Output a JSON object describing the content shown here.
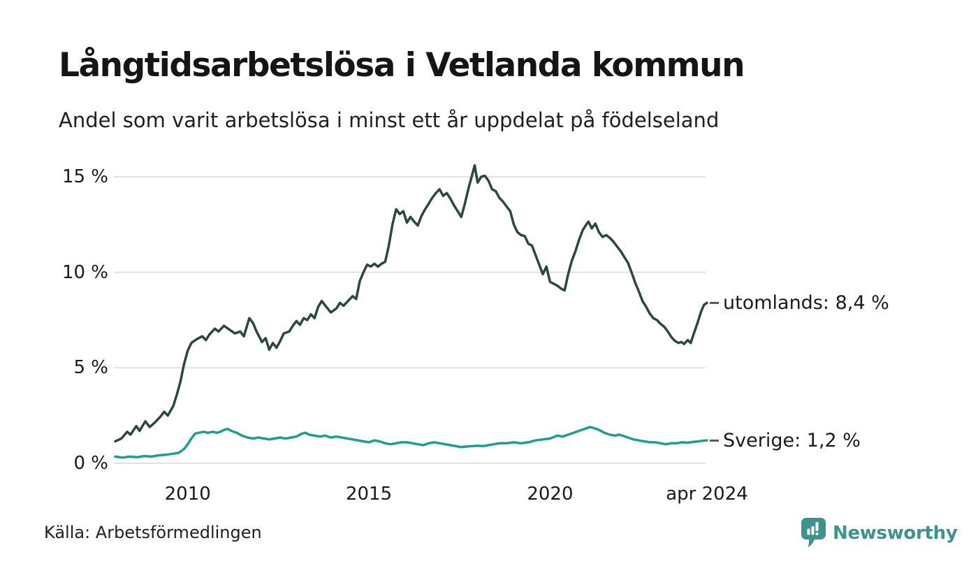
{
  "header": {
    "title": "Långtidsarbetslösa i Vetlanda kommun",
    "subtitle": "Andel som varit arbetslösa i minst ett år uppdelat på födelseland"
  },
  "footer": {
    "source": "Källa: Arbetsförmedlingen",
    "brand": "Newsworthy",
    "brand_icon": "newsworthy-pin-bar-chart-icon"
  },
  "colors": {
    "series_utomlands": "#2b4741",
    "series_sverige": "#1f9e8e",
    "grid": "#e1e1e1",
    "text": "#1a1a1a",
    "brand": "#3c948c",
    "label_dash": "#5a5a5a"
  },
  "chart_data": {
    "type": "line",
    "title": "Långtidsarbetslösa i Vetlanda kommun",
    "subtitle": "Andel som varit arbetslösa i minst ett år uppdelat på födelseland",
    "unit": "%",
    "grid": "horizontal",
    "legend_position": "right-of-line-ends",
    "xlim": [
      2008.0,
      2024.33
    ],
    "ylim": [
      0,
      15.8
    ],
    "x_ticks": [
      {
        "year": 2010,
        "label": "2010"
      },
      {
        "year": 2015,
        "label": "2015"
      },
      {
        "year": 2020,
        "label": "2020"
      },
      {
        "year": 2024.33,
        "label": "apr 2024"
      }
    ],
    "y_ticks": [
      {
        "value": 15,
        "label": "15 %"
      },
      {
        "value": 10,
        "label": "10 %"
      },
      {
        "value": 5,
        "label": "5 %"
      },
      {
        "value": 0,
        "label": "0 %"
      }
    ],
    "series": [
      {
        "name": "utomlands",
        "end_label": "utomlands: 8,4 %",
        "last_value_display": "8,4 %",
        "color": "#2b4741",
        "points": [
          [
            2008.0,
            1.15
          ],
          [
            2008.17,
            1.3
          ],
          [
            2008.33,
            1.65
          ],
          [
            2008.42,
            1.5
          ],
          [
            2008.58,
            1.95
          ],
          [
            2008.67,
            1.7
          ],
          [
            2008.83,
            2.2
          ],
          [
            2008.95,
            1.9
          ],
          [
            2009.1,
            2.15
          ],
          [
            2009.25,
            2.45
          ],
          [
            2009.35,
            2.7
          ],
          [
            2009.45,
            2.5
          ],
          [
            2009.6,
            3.0
          ],
          [
            2009.7,
            3.6
          ],
          [
            2009.8,
            4.3
          ],
          [
            2009.9,
            5.2
          ],
          [
            2010.0,
            5.9
          ],
          [
            2010.1,
            6.3
          ],
          [
            2010.25,
            6.5
          ],
          [
            2010.4,
            6.65
          ],
          [
            2010.5,
            6.45
          ],
          [
            2010.6,
            6.75
          ],
          [
            2010.75,
            7.05
          ],
          [
            2010.85,
            6.9
          ],
          [
            2011.0,
            7.2
          ],
          [
            2011.15,
            7.0
          ],
          [
            2011.3,
            6.8
          ],
          [
            2011.45,
            6.9
          ],
          [
            2011.55,
            6.65
          ],
          [
            2011.7,
            7.6
          ],
          [
            2011.8,
            7.35
          ],
          [
            2011.9,
            6.9
          ],
          [
            2012.05,
            6.35
          ],
          [
            2012.15,
            6.55
          ],
          [
            2012.25,
            5.95
          ],
          [
            2012.35,
            6.3
          ],
          [
            2012.45,
            6.05
          ],
          [
            2012.55,
            6.4
          ],
          [
            2012.65,
            6.8
          ],
          [
            2012.8,
            6.9
          ],
          [
            2012.9,
            7.2
          ],
          [
            2013.0,
            7.45
          ],
          [
            2013.1,
            7.25
          ],
          [
            2013.2,
            7.6
          ],
          [
            2013.3,
            7.5
          ],
          [
            2013.4,
            7.8
          ],
          [
            2013.5,
            7.6
          ],
          [
            2013.6,
            8.2
          ],
          [
            2013.7,
            8.5
          ],
          [
            2013.8,
            8.25
          ],
          [
            2013.95,
            7.9
          ],
          [
            2014.1,
            8.1
          ],
          [
            2014.2,
            8.4
          ],
          [
            2014.3,
            8.25
          ],
          [
            2014.45,
            8.55
          ],
          [
            2014.55,
            8.75
          ],
          [
            2014.65,
            8.6
          ],
          [
            2014.75,
            9.55
          ],
          [
            2014.85,
            10.0
          ],
          [
            2014.95,
            10.4
          ],
          [
            2015.05,
            10.3
          ],
          [
            2015.15,
            10.45
          ],
          [
            2015.25,
            10.3
          ],
          [
            2015.35,
            10.45
          ],
          [
            2015.45,
            10.55
          ],
          [
            2015.55,
            11.4
          ],
          [
            2015.65,
            12.5
          ],
          [
            2015.75,
            13.3
          ],
          [
            2015.85,
            13.05
          ],
          [
            2015.95,
            13.2
          ],
          [
            2016.05,
            12.6
          ],
          [
            2016.15,
            12.9
          ],
          [
            2016.25,
            12.65
          ],
          [
            2016.35,
            12.45
          ],
          [
            2016.45,
            12.95
          ],
          [
            2016.55,
            13.3
          ],
          [
            2016.65,
            13.6
          ],
          [
            2016.75,
            13.9
          ],
          [
            2016.85,
            14.15
          ],
          [
            2016.95,
            14.35
          ],
          [
            2017.05,
            14.0
          ],
          [
            2017.15,
            14.15
          ],
          [
            2017.25,
            13.85
          ],
          [
            2017.35,
            13.5
          ],
          [
            2017.45,
            13.2
          ],
          [
            2017.55,
            12.9
          ],
          [
            2017.65,
            13.6
          ],
          [
            2017.75,
            14.4
          ],
          [
            2017.85,
            15.1
          ],
          [
            2017.92,
            15.6
          ],
          [
            2018.0,
            14.7
          ],
          [
            2018.1,
            15.0
          ],
          [
            2018.2,
            15.05
          ],
          [
            2018.3,
            14.8
          ],
          [
            2018.4,
            14.35
          ],
          [
            2018.5,
            14.25
          ],
          [
            2018.6,
            13.9
          ],
          [
            2018.7,
            13.7
          ],
          [
            2018.8,
            13.45
          ],
          [
            2018.9,
            13.2
          ],
          [
            2019.0,
            12.5
          ],
          [
            2019.1,
            12.1
          ],
          [
            2019.2,
            11.95
          ],
          [
            2019.3,
            11.9
          ],
          [
            2019.4,
            11.5
          ],
          [
            2019.5,
            11.4
          ],
          [
            2019.6,
            10.9
          ],
          [
            2019.7,
            10.4
          ],
          [
            2019.8,
            9.9
          ],
          [
            2019.9,
            10.3
          ],
          [
            2020.0,
            9.5
          ],
          [
            2020.1,
            9.4
          ],
          [
            2020.2,
            9.3
          ],
          [
            2020.3,
            9.15
          ],
          [
            2020.4,
            9.05
          ],
          [
            2020.5,
            9.9
          ],
          [
            2020.6,
            10.6
          ],
          [
            2020.7,
            11.1
          ],
          [
            2020.8,
            11.7
          ],
          [
            2020.9,
            12.2
          ],
          [
            2021.0,
            12.5
          ],
          [
            2021.06,
            12.65
          ],
          [
            2021.15,
            12.3
          ],
          [
            2021.25,
            12.55
          ],
          [
            2021.35,
            12.1
          ],
          [
            2021.45,
            11.85
          ],
          [
            2021.55,
            11.95
          ],
          [
            2021.65,
            11.8
          ],
          [
            2021.75,
            11.6
          ],
          [
            2021.85,
            11.35
          ],
          [
            2021.95,
            11.1
          ],
          [
            2022.05,
            10.8
          ],
          [
            2022.15,
            10.5
          ],
          [
            2022.25,
            10.0
          ],
          [
            2022.35,
            9.45
          ],
          [
            2022.45,
            9.0
          ],
          [
            2022.55,
            8.5
          ],
          [
            2022.65,
            8.2
          ],
          [
            2022.75,
            7.85
          ],
          [
            2022.85,
            7.6
          ],
          [
            2022.95,
            7.5
          ],
          [
            2023.05,
            7.3
          ],
          [
            2023.15,
            7.15
          ],
          [
            2023.25,
            6.9
          ],
          [
            2023.35,
            6.6
          ],
          [
            2023.45,
            6.4
          ],
          [
            2023.55,
            6.3
          ],
          [
            2023.62,
            6.35
          ],
          [
            2023.7,
            6.25
          ],
          [
            2023.8,
            6.45
          ],
          [
            2023.88,
            6.3
          ],
          [
            2023.97,
            6.8
          ],
          [
            2024.07,
            7.35
          ],
          [
            2024.17,
            7.95
          ],
          [
            2024.25,
            8.3
          ],
          [
            2024.33,
            8.4
          ]
        ]
      },
      {
        "name": "Sverige",
        "end_label": "Sverige: 1,2 %",
        "last_value_display": "1,2 %",
        "color": "#1f9e8e",
        "points": [
          [
            2008.0,
            0.35
          ],
          [
            2008.2,
            0.3
          ],
          [
            2008.4,
            0.35
          ],
          [
            2008.6,
            0.32
          ],
          [
            2008.8,
            0.38
          ],
          [
            2009.0,
            0.35
          ],
          [
            2009.2,
            0.42
          ],
          [
            2009.4,
            0.45
          ],
          [
            2009.6,
            0.5
          ],
          [
            2009.75,
            0.55
          ],
          [
            2009.9,
            0.75
          ],
          [
            2010.0,
            1.0
          ],
          [
            2010.1,
            1.3
          ],
          [
            2010.2,
            1.55
          ],
          [
            2010.3,
            1.6
          ],
          [
            2010.45,
            1.65
          ],
          [
            2010.55,
            1.6
          ],
          [
            2010.7,
            1.65
          ],
          [
            2010.8,
            1.6
          ],
          [
            2010.9,
            1.65
          ],
          [
            2011.0,
            1.75
          ],
          [
            2011.1,
            1.8
          ],
          [
            2011.2,
            1.7
          ],
          [
            2011.35,
            1.6
          ],
          [
            2011.5,
            1.45
          ],
          [
            2011.65,
            1.35
          ],
          [
            2011.8,
            1.3
          ],
          [
            2011.95,
            1.35
          ],
          [
            2012.1,
            1.3
          ],
          [
            2012.25,
            1.25
          ],
          [
            2012.4,
            1.3
          ],
          [
            2012.55,
            1.35
          ],
          [
            2012.7,
            1.3
          ],
          [
            2012.85,
            1.35
          ],
          [
            2013.0,
            1.4
          ],
          [
            2013.15,
            1.55
          ],
          [
            2013.25,
            1.6
          ],
          [
            2013.35,
            1.5
          ],
          [
            2013.5,
            1.45
          ],
          [
            2013.65,
            1.4
          ],
          [
            2013.8,
            1.45
          ],
          [
            2013.95,
            1.35
          ],
          [
            2014.1,
            1.4
          ],
          [
            2014.25,
            1.35
          ],
          [
            2014.4,
            1.3
          ],
          [
            2014.55,
            1.25
          ],
          [
            2014.7,
            1.2
          ],
          [
            2014.85,
            1.15
          ],
          [
            2015.0,
            1.1
          ],
          [
            2015.15,
            1.2
          ],
          [
            2015.3,
            1.15
          ],
          [
            2015.45,
            1.05
          ],
          [
            2015.6,
            1.0
          ],
          [
            2015.75,
            1.05
          ],
          [
            2015.9,
            1.1
          ],
          [
            2016.05,
            1.1
          ],
          [
            2016.2,
            1.05
          ],
          [
            2016.35,
            1.0
          ],
          [
            2016.5,
            0.95
          ],
          [
            2016.65,
            1.05
          ],
          [
            2016.8,
            1.1
          ],
          [
            2016.95,
            1.05
          ],
          [
            2017.1,
            1.0
          ],
          [
            2017.25,
            0.95
          ],
          [
            2017.4,
            0.9
          ],
          [
            2017.55,
            0.85
          ],
          [
            2017.7,
            0.88
          ],
          [
            2017.85,
            0.9
          ],
          [
            2018.0,
            0.92
          ],
          [
            2018.15,
            0.9
          ],
          [
            2018.3,
            0.95
          ],
          [
            2018.45,
            1.0
          ],
          [
            2018.6,
            1.05
          ],
          [
            2018.8,
            1.05
          ],
          [
            2019.0,
            1.1
          ],
          [
            2019.2,
            1.05
          ],
          [
            2019.4,
            1.1
          ],
          [
            2019.6,
            1.2
          ],
          [
            2019.8,
            1.25
          ],
          [
            2020.0,
            1.3
          ],
          [
            2020.2,
            1.45
          ],
          [
            2020.35,
            1.4
          ],
          [
            2020.5,
            1.5
          ],
          [
            2020.65,
            1.6
          ],
          [
            2020.8,
            1.7
          ],
          [
            2020.95,
            1.8
          ],
          [
            2021.1,
            1.9
          ],
          [
            2021.2,
            1.85
          ],
          [
            2021.35,
            1.75
          ],
          [
            2021.5,
            1.6
          ],
          [
            2021.65,
            1.5
          ],
          [
            2021.8,
            1.45
          ],
          [
            2021.9,
            1.5
          ],
          [
            2022.0,
            1.45
          ],
          [
            2022.15,
            1.35
          ],
          [
            2022.3,
            1.25
          ],
          [
            2022.45,
            1.2
          ],
          [
            2022.6,
            1.15
          ],
          [
            2022.75,
            1.1
          ],
          [
            2022.9,
            1.1
          ],
          [
            2023.05,
            1.05
          ],
          [
            2023.2,
            1.0
          ],
          [
            2023.35,
            1.05
          ],
          [
            2023.5,
            1.05
          ],
          [
            2023.65,
            1.1
          ],
          [
            2023.8,
            1.08
          ],
          [
            2023.95,
            1.12
          ],
          [
            2024.1,
            1.15
          ],
          [
            2024.2,
            1.18
          ],
          [
            2024.33,
            1.2
          ]
        ]
      }
    ]
  }
}
